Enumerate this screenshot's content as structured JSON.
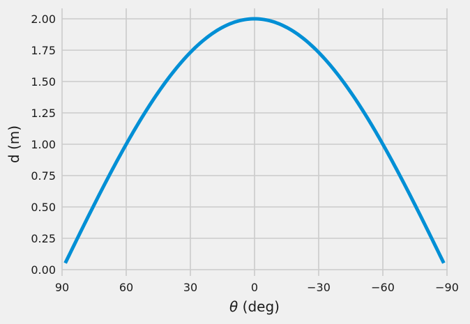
{
  "chart_data": {
    "type": "line",
    "title": "",
    "xlabel": "θ (deg)",
    "xlabel_symbol": "θ",
    "xlabel_unit": "(deg)",
    "ylabel": "d (m)",
    "xlim": [
      90,
      -90
    ],
    "ylim": [
      0,
      2.0
    ],
    "x_ticks": [
      90,
      60,
      30,
      0,
      -30,
      -60,
      -90
    ],
    "x_tick_labels": [
      "90",
      "60",
      "30",
      "0",
      "−30",
      "−60",
      "−90"
    ],
    "y_ticks": [
      0,
      0.25,
      0.5,
      0.75,
      1.0,
      1.25,
      1.5,
      1.75,
      2.0
    ],
    "y_tick_labels": [
      "0.00",
      "0.25",
      "0.50",
      "0.75",
      "1.00",
      "1.25",
      "1.50",
      "1.75",
      "2.00"
    ],
    "grid": true,
    "style": "fivethirtyeight",
    "series": [
      {
        "name": "d",
        "formula": "d = 2·cos(θ)",
        "color": "#008fd5",
        "x": [
          88.5,
          75,
          60,
          45,
          30,
          15,
          0,
          -15,
          -30,
          -45,
          -60,
          -75,
          -88.5
        ],
        "values": [
          0.05,
          0.52,
          1.0,
          1.41,
          1.73,
          1.93,
          2.0,
          1.93,
          1.73,
          1.41,
          1.0,
          0.52,
          0.05
        ]
      }
    ]
  },
  "colors": {
    "background": "#f0f0f0",
    "grid": "#cbcbcb",
    "line": "#008fd5",
    "text": "#1a1a1a"
  }
}
